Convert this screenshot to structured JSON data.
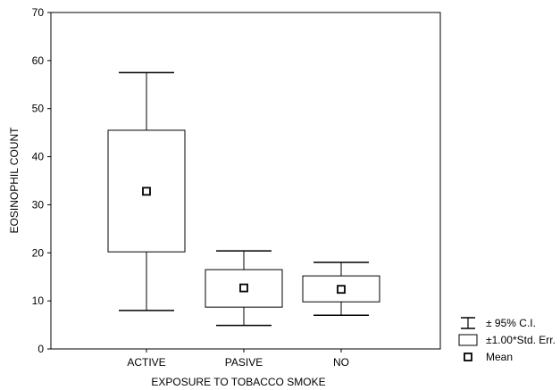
{
  "chart_data": {
    "type": "box",
    "xlabel": "EXPOSURE TO TOBACCO SMOKE",
    "ylabel": "EOSINOPHIL COUNT",
    "ylim": [
      0,
      70
    ],
    "yticks": [
      "0",
      "10",
      "20",
      "30",
      "40",
      "50",
      "60",
      "70"
    ],
    "grid": false,
    "legend_position": "bottom-right",
    "categories": [
      "ACTIVE",
      "PASIVE",
      "NO"
    ],
    "groups": [
      {
        "category": "ACTIVE",
        "mean": 32.8,
        "se_low": 20.2,
        "se_high": 45.5,
        "ci_low": 8.0,
        "ci_high": 57.5
      },
      {
        "category": "PASIVE",
        "mean": 12.7,
        "se_low": 8.7,
        "se_high": 16.5,
        "ci_low": 4.9,
        "ci_high": 20.4
      },
      {
        "category": "NO",
        "mean": 12.4,
        "se_low": 9.8,
        "se_high": 15.2,
        "ci_low": 7.0,
        "ci_high": 18.0
      }
    ],
    "legend": [
      {
        "key": "ci",
        "label": "± 95% C.I."
      },
      {
        "key": "se",
        "label": "±1.00*Std. Err."
      },
      {
        "key": "mean",
        "label": "Mean"
      }
    ]
  }
}
